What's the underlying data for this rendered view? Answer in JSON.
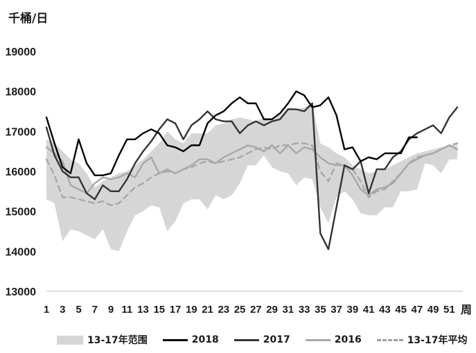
{
  "y_unit": "千桶/日",
  "x_unit": "周",
  "chart_data": {
    "type": "line",
    "ylim": [
      13000,
      19000
    ],
    "xlim": [
      1,
      52
    ],
    "y_ticks": [
      13000,
      14000,
      15000,
      16000,
      17000,
      18000,
      19000
    ],
    "x_ticks": [
      1,
      3,
      5,
      7,
      9,
      11,
      13,
      15,
      17,
      19,
      21,
      23,
      25,
      27,
      29,
      31,
      33,
      35,
      37,
      39,
      41,
      43,
      45,
      47,
      49,
      51
    ],
    "grid": false,
    "legend_position": "bottom",
    "range_band": {
      "name": "13-17年范围",
      "color": "#d6d6d6",
      "x": [
        1,
        2,
        3,
        4,
        5,
        6,
        7,
        8,
        9,
        10,
        11,
        12,
        13,
        14,
        15,
        16,
        17,
        18,
        19,
        20,
        21,
        22,
        23,
        24,
        25,
        26,
        27,
        28,
        29,
        30,
        31,
        32,
        33,
        34,
        35,
        36,
        37,
        38,
        39,
        40,
        41,
        42,
        43,
        44,
        45,
        46,
        47,
        48,
        49,
        50,
        51,
        52
      ],
      "low": [
        15300,
        15200,
        14250,
        14550,
        14500,
        14400,
        14300,
        14550,
        14050,
        14000,
        14500,
        14900,
        15000,
        15150,
        15100,
        14500,
        14750,
        15200,
        15300,
        15300,
        15050,
        15400,
        15300,
        15400,
        15700,
        16150,
        16150,
        16400,
        16100,
        16000,
        15950,
        15650,
        15850,
        15800,
        15100,
        14700,
        15350,
        15500,
        15300,
        14950,
        14900,
        14900,
        15100,
        15100,
        15500,
        15500,
        15550,
        16200,
        16150,
        15950,
        16300,
        16300
      ],
      "high": [
        16800,
        16700,
        16500,
        16300,
        16200,
        15950,
        15600,
        15750,
        15850,
        15950,
        16000,
        16150,
        16300,
        16500,
        16700,
        17000,
        16800,
        16700,
        16950,
        16950,
        16950,
        17150,
        17200,
        17300,
        17350,
        17300,
        17250,
        17350,
        17250,
        17400,
        17600,
        17550,
        17600,
        17700,
        16700,
        16600,
        16450,
        16350,
        16150,
        16050,
        15950,
        16000,
        16050,
        16150,
        16250,
        16350,
        16450,
        16500,
        16550,
        16600,
        16650,
        16700
      ]
    },
    "series": [
      {
        "name": "2018",
        "color": "#000000",
        "width": 2.4,
        "dash": "",
        "x": [
          1,
          2,
          3,
          4,
          5,
          6,
          7,
          8,
          9,
          10,
          11,
          12,
          13,
          14,
          15,
          16,
          17,
          18,
          19,
          20,
          21,
          22,
          23,
          24,
          25,
          26,
          27,
          28,
          29,
          30,
          31,
          32,
          33,
          34,
          35,
          36,
          37,
          38,
          39,
          40,
          41,
          42,
          43,
          44,
          45,
          46,
          47
        ],
        "values": [
          17350,
          16700,
          16100,
          15950,
          16800,
          16200,
          15900,
          15900,
          15950,
          16400,
          16800,
          16800,
          16950,
          17050,
          16950,
          16650,
          16600,
          16500,
          16650,
          16650,
          17200,
          17400,
          17500,
          17700,
          17850,
          17700,
          17700,
          17300,
          17300,
          17450,
          17700,
          18000,
          17900,
          17600,
          17650,
          17850,
          17400,
          16550,
          16600,
          16250,
          16350,
          16300,
          16450,
          16450,
          16450,
          16850,
          16850
        ]
      },
      {
        "name": "2017",
        "color": "#333333",
        "width": 2.4,
        "dash": "",
        "x": [
          1,
          2,
          3,
          4,
          5,
          6,
          7,
          8,
          9,
          10,
          11,
          12,
          13,
          14,
          15,
          16,
          17,
          18,
          19,
          20,
          21,
          22,
          23,
          24,
          25,
          26,
          27,
          28,
          29,
          30,
          31,
          32,
          33,
          34,
          35,
          36,
          37,
          38,
          39,
          40,
          41,
          42,
          43,
          44,
          45,
          46,
          47,
          48,
          49,
          50,
          51,
          52
        ],
        "values": [
          17100,
          16400,
          16000,
          15850,
          15850,
          15450,
          15300,
          15650,
          15500,
          15500,
          15800,
          16200,
          16500,
          16750,
          17050,
          17300,
          17200,
          16800,
          17150,
          17300,
          17500,
          17300,
          17250,
          17250,
          16950,
          17150,
          17250,
          17150,
          17250,
          17300,
          17550,
          17550,
          17500,
          17700,
          14450,
          14050,
          15100,
          16150,
          16050,
          16250,
          15450,
          16050,
          16050,
          16350,
          16500,
          16800,
          16950,
          17050,
          17150,
          16950,
          17350,
          17600
        ]
      },
      {
        "name": "2016",
        "color": "#a8a8a8",
        "width": 2.4,
        "dash": "",
        "x": [
          1,
          2,
          3,
          4,
          5,
          6,
          7,
          8,
          9,
          10,
          11,
          12,
          13,
          14,
          15,
          16,
          17,
          18,
          19,
          20,
          21,
          22,
          23,
          24,
          25,
          26,
          27,
          28,
          29,
          30,
          31,
          32,
          33,
          34,
          35,
          36,
          37,
          38,
          39,
          40,
          41,
          42,
          43,
          44,
          45,
          46,
          47,
          48,
          49,
          50,
          51,
          52
        ],
        "values": [
          16600,
          16450,
          16250,
          15650,
          15550,
          15450,
          15700,
          15850,
          15800,
          15850,
          15950,
          15850,
          16200,
          16350,
          15950,
          16050,
          15950,
          16050,
          16150,
          16300,
          16300,
          16200,
          16350,
          16450,
          16550,
          16650,
          16600,
          16500,
          16650,
          16450,
          16650,
          16450,
          16600,
          16550,
          16350,
          16200,
          16150,
          16150,
          15900,
          15550,
          15400,
          15550,
          15600,
          15700,
          15950,
          16200,
          16300,
          16400,
          16450,
          16550,
          16650,
          16550
        ]
      },
      {
        "name": "13-17年平均",
        "color": "#a8a8a8",
        "width": 2.4,
        "dash": "8,6",
        "x": [
          1,
          2,
          3,
          4,
          5,
          6,
          7,
          8,
          9,
          10,
          11,
          12,
          13,
          14,
          15,
          16,
          17,
          18,
          19,
          20,
          21,
          22,
          23,
          24,
          25,
          26,
          27,
          28,
          29,
          30,
          31,
          32,
          33,
          34,
          35,
          36,
          37,
          38,
          39,
          40,
          41,
          42,
          43,
          44,
          45,
          46,
          47,
          48,
          49,
          50,
          51,
          52
        ],
        "values": [
          16300,
          15900,
          15350,
          15350,
          15300,
          15250,
          15200,
          15250,
          15150,
          15200,
          15400,
          15600,
          15700,
          15850,
          15950,
          16000,
          15950,
          16050,
          16100,
          16200,
          16250,
          16200,
          16250,
          16300,
          16350,
          16450,
          16550,
          16600,
          16550,
          16650,
          16650,
          16700,
          16700,
          16650,
          16000,
          15750,
          16200,
          16150,
          16050,
          15750,
          15350,
          15500,
          15550,
          15750,
          15950,
          16200,
          16350,
          16400,
          16450,
          16550,
          16650,
          16700
        ]
      }
    ]
  }
}
